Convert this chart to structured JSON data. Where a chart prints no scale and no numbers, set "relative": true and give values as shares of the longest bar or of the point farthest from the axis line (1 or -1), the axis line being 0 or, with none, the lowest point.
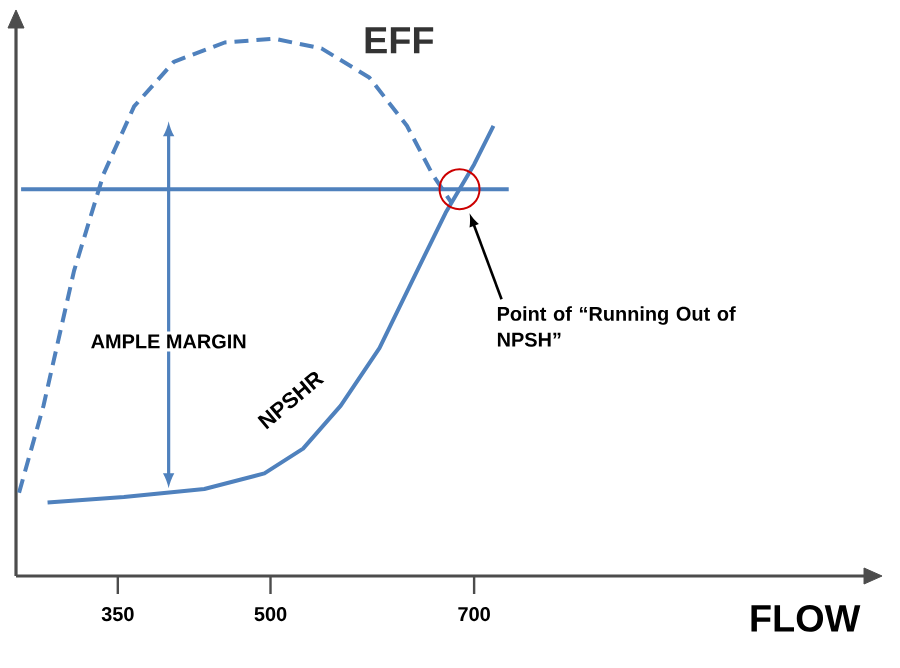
{
  "chart_data": {
    "type": "line",
    "relative": true,
    "xlabel": "FLOW",
    "xlim": [
      250,
      1083
    ],
    "xticks": [
      350,
      500,
      700
    ],
    "tick_labels": "x",
    "legend": false,
    "grid": false,
    "marker": "none",
    "series": [
      {
        "name": "EFF",
        "color": "#4f81bd",
        "line_style": "dashed",
        "x": [
          253,
          277,
          307,
          336,
          366,
          405,
          455,
          504,
          550,
          597,
          634,
          659,
          678
        ],
        "values": [
          0.155,
          0.317,
          0.568,
          0.748,
          0.874,
          0.957,
          0.993,
          1.0,
          0.982,
          0.928,
          0.838,
          0.748,
          0.694
        ]
      },
      {
        "name": "NPSHR",
        "color": "#4f81bd",
        "line_style": "solid",
        "x": [
          281,
          356,
          435,
          494,
          532,
          569,
          607,
          644,
          672,
          700,
          719
        ],
        "values": [
          0.137,
          0.147,
          0.162,
          0.191,
          0.237,
          0.317,
          0.424,
          0.568,
          0.676,
          0.766,
          0.838
        ]
      },
      {
        "color": "#4f81bd",
        "line_style": "solid",
        "x": [
          255,
          734
        ],
        "values": [
          0.72,
          0.72
        ]
      }
    ],
    "annotations": [
      "AMPLE MARGIN",
      "Point of “Running Out of NPSH”"
    ]
  }
}
